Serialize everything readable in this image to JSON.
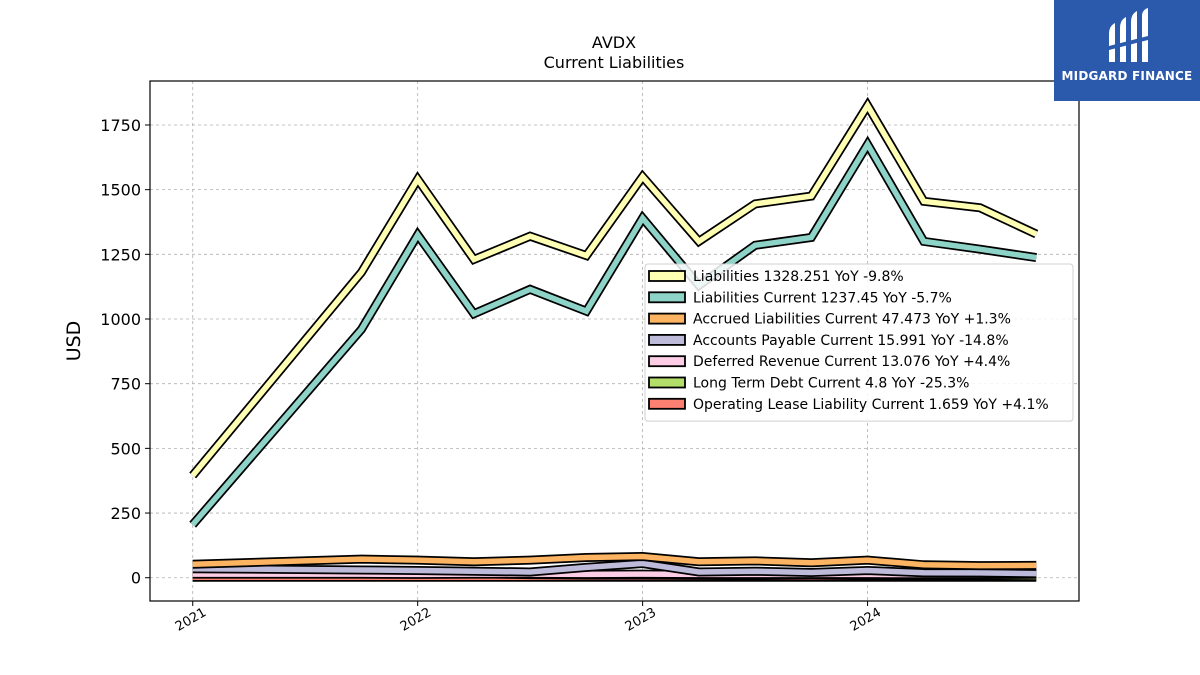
{
  "chart_data": {
    "type": "line",
    "title": "AVDX",
    "subtitle": "Current  Liabilities",
    "ylabel": "USD",
    "xlabel": "",
    "ylim": [
      -90,
      1920
    ],
    "xlim": [
      2020.81,
      2024.94
    ],
    "yticks": [
      0,
      250,
      500,
      750,
      1000,
      1250,
      1500,
      1750
    ],
    "xticks": [
      2021,
      2022,
      2023,
      2024
    ],
    "grid": true,
    "legend_position": "center-right",
    "x": [
      2021.0,
      2021.75,
      2022.0,
      2022.25,
      2022.5,
      2022.75,
      2023.0,
      2023.25,
      2023.5,
      2023.75,
      2024.0,
      2024.25,
      2024.5,
      2024.75
    ],
    "series": [
      {
        "name": "Liabilities",
        "legend": "Liabilities  1328.251 YoY -9.8%",
        "color": "#ffffb3",
        "values": [
          395,
          1180,
          1540,
          1230,
          1320,
          1245,
          1550,
          1300,
          1445,
          1475,
          1825,
          1455,
          1430,
          1328.251
        ]
      },
      {
        "name": "Liabilities Current",
        "legend": "Liabilities Current  1237.45 YoY -5.7%",
        "color": "#8dd3c7",
        "values": [
          205,
          960,
          1325,
          1020,
          1115,
          1030,
          1390,
          1130,
          1285,
          1315,
          1675,
          1300,
          1270,
          1237.45
        ]
      },
      {
        "name": "Accrued Liabilities Current",
        "legend": "Accrued Liabilities Current  47.473 YoY +1.3%",
        "color": "#fdb462",
        "values": [
          52,
          72,
          68,
          62,
          68,
          78,
          82,
          62,
          65,
          58,
          68,
          50,
          46.9,
          47.473
        ]
      },
      {
        "name": "Accounts Payable Current",
        "legend": "Accounts Payable Current  15.991 YoY -14.8%",
        "color": "#bebada",
        "values": [
          35,
          30,
          28,
          25,
          22,
          40,
          55,
          22,
          25,
          20,
          28,
          19,
          18.8,
          15.991
        ]
      },
      {
        "name": "Deferred Revenue Current",
        "legend": "Deferred Revenue Current  13.076 YoY +4.4%",
        "color": "#fccde5",
        "values": [
          14,
          14,
          13,
          14,
          14,
          13,
          14,
          13,
          13,
          13,
          13,
          12.5,
          12.5,
          13.076
        ]
      },
      {
        "name": "Long Term Debt Current",
        "legend": "Long Term Debt Current  4.8 YoY -25.3%",
        "color": "#b3de69",
        "values": [
          22,
          28,
          18,
          16,
          12,
          10,
          10,
          9,
          8,
          10,
          8,
          6.4,
          6.4,
          4.8
        ]
      },
      {
        "name": "Operating Lease Liability Current",
        "legend": "Operating Lease Liability Current  1.659 YoY +4.1%",
        "color": "#fb8072",
        "values": [
          2,
          2,
          1.8,
          1.7,
          1.6,
          1.6,
          1.6,
          1.6,
          1.6,
          1.6,
          1.6,
          1.6,
          1.59,
          1.659
        ]
      }
    ]
  },
  "logo": {
    "text": "MIDGARD FINANCE",
    "color": "#2b5aad"
  }
}
